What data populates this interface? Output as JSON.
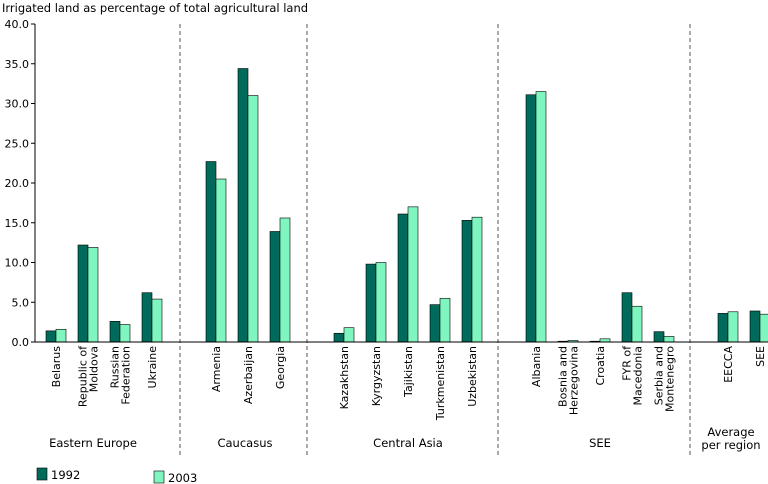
{
  "chart_data": {
    "type": "bar",
    "title": "Irrigated land as percentage of total agricultural land",
    "ylim": [
      0,
      40
    ],
    "yticks": [
      "0.0",
      "5.0",
      "10.0",
      "15.0",
      "20.0",
      "25.0",
      "30.0",
      "35.0",
      "40.0"
    ],
    "grid": false,
    "colors": {
      "s1992": "#006b5b",
      "s2003": "#7ff5c0",
      "axis": "#000000",
      "separator": "#555555"
    },
    "series": [
      {
        "name": "1992",
        "values": [
          1.4,
          12.2,
          2.6,
          6.2,
          22.7,
          34.4,
          13.9,
          1.1,
          9.8,
          16.1,
          4.7,
          15.3,
          31.1,
          0.1,
          0.1,
          6.2,
          1.3,
          3.6,
          3.9
        ]
      },
      {
        "name": "2003",
        "values": [
          1.6,
          11.9,
          2.2,
          5.4,
          20.5,
          31.0,
          15.6,
          1.8,
          10.0,
          17.0,
          5.5,
          15.7,
          31.5,
          0.2,
          0.4,
          4.5,
          0.7,
          3.8,
          3.5
        ]
      }
    ],
    "groups": [
      {
        "label": "Eastern Europe",
        "categories": [
          "Belarus",
          "Republic of Moldova",
          "Russian Federation",
          "Ukraine"
        ]
      },
      {
        "label": "Caucasus",
        "categories": [
          "Armenia",
          "Azerbaijan",
          "Georgia"
        ]
      },
      {
        "label": "Central Asia",
        "categories": [
          "Kazakhstan",
          "Kyrgyzstan",
          "Tajikistan",
          "Turkmenistan",
          "Uzbekistan"
        ]
      },
      {
        "label": "SEE",
        "categories": [
          "Albania",
          "Bosnia and Herzegovina",
          "Croatia",
          "FYR of Macedonia",
          "Serbia and Montenegro"
        ]
      },
      {
        "label": "Average per region",
        "categories": [
          "EECCA",
          "SEE"
        ]
      }
    ],
    "category_labels": [
      [
        "Belarus"
      ],
      [
        "Republic of",
        "Moldova"
      ],
      [
        "Russian",
        "Federation"
      ],
      [
        "Ukraine"
      ],
      [
        "Armenia"
      ],
      [
        "Azerbaijan"
      ],
      [
        "Georgia"
      ],
      [
        "Kazakhstan"
      ],
      [
        "Kyrgyzstan"
      ],
      [
        "Tajikistan"
      ],
      [
        "Turkmenistan"
      ],
      [
        "Uzbekistan"
      ],
      [
        "Albania"
      ],
      [
        "Bosnia and",
        "Herzegovina"
      ],
      [
        "Croatia"
      ],
      [
        "FYR of",
        "Macedonia"
      ],
      [
        "Serbia and",
        "Montenegro"
      ],
      [
        "EECCA"
      ],
      [
        "SEE"
      ]
    ],
    "group_labels": [
      [
        "Eastern Europe"
      ],
      [
        "Caucasus"
      ],
      [
        "Central Asia"
      ],
      [
        "SEE"
      ],
      [
        "Average",
        "per region"
      ]
    ]
  }
}
